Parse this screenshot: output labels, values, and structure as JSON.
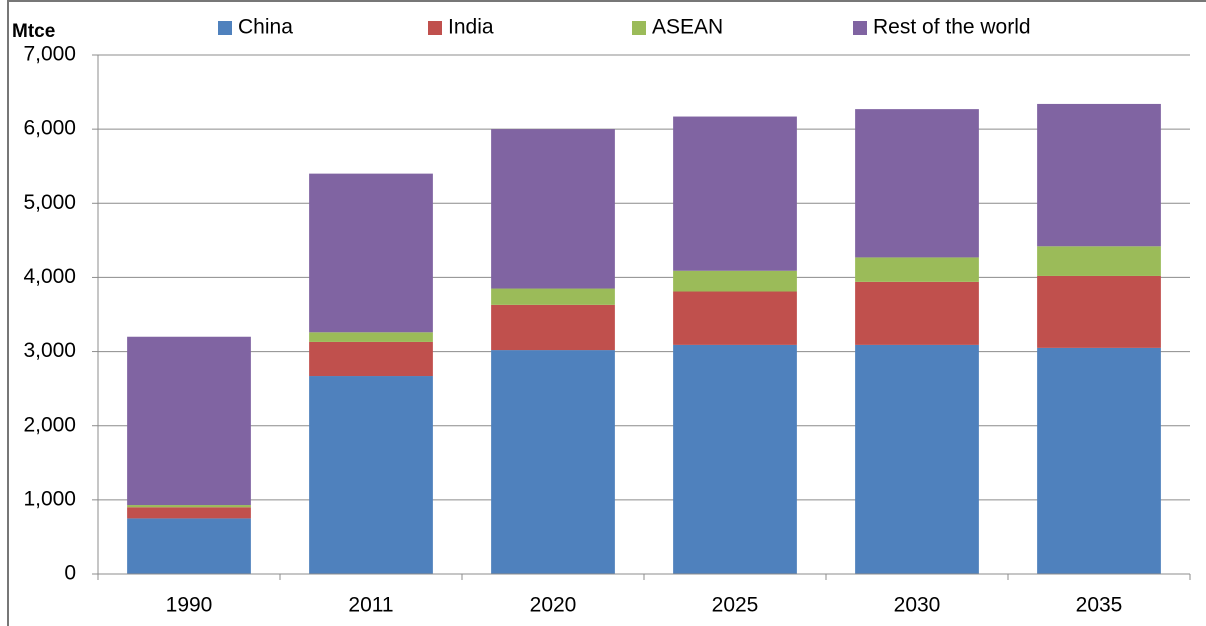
{
  "chart_data": {
    "type": "stacked_bar",
    "ylabel": "Mtce",
    "categories": [
      "1990",
      "2011",
      "2020",
      "2025",
      "2030",
      "2035"
    ],
    "series": [
      {
        "name": "China",
        "color": "#4f81bd",
        "values": [
          750,
          2670,
          3020,
          3090,
          3090,
          3050
        ]
      },
      {
        "name": "India",
        "color": "#c0504d",
        "values": [
          150,
          460,
          610,
          720,
          850,
          970
        ]
      },
      {
        "name": "ASEAN",
        "color": "#9bbb59",
        "values": [
          30,
          130,
          220,
          280,
          330,
          400
        ]
      },
      {
        "name": "Rest of the world",
        "color": "#8064a2",
        "values": [
          2270,
          2140,
          2150,
          2080,
          2000,
          1920
        ]
      }
    ],
    "ylim": [
      0,
      7000
    ],
    "yticks": [
      0,
      {
        "value": 1000,
        "label": "1,000"
      },
      {
        "value": 2000,
        "label": "2,000"
      },
      {
        "value": 3000,
        "label": "3,000"
      },
      {
        "value": 4000,
        "label": "4,000"
      },
      {
        "value": 5000,
        "label": "5,000"
      },
      {
        "value": 6000,
        "label": "6,000"
      },
      {
        "value": 7000,
        "label": "7,000"
      }
    ],
    "grid": true,
    "legend": "top"
  }
}
